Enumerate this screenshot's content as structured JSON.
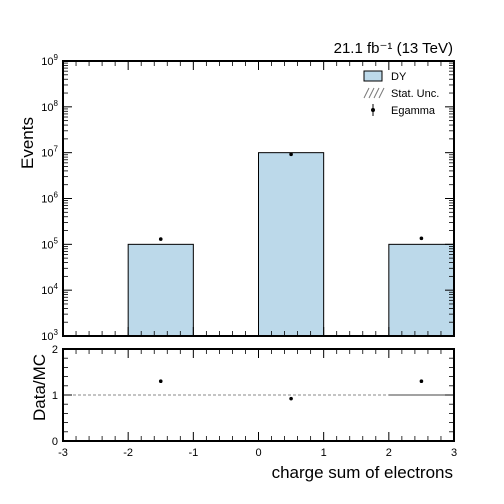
{
  "lumi_label": "21.1 fb⁻¹ (13 TeV)",
  "colors": {
    "mc_fill": "#bcd9ea",
    "mc_edge": "#000000",
    "data_marker": "#000000",
    "ratio_line": "#888888"
  },
  "chart_data": [
    {
      "type": "bar",
      "panel": "main",
      "xlabel": "",
      "ylabel": "Events",
      "xlim": [
        -3,
        3
      ],
      "ylim": [
        1000,
        1000000000
      ],
      "yscale": "log",
      "y_tick_exponents": [
        3,
        4,
        5,
        6,
        7,
        8,
        9
      ],
      "legend_placement": "top-right",
      "legend": [
        {
          "label": "DY",
          "kind": "fill"
        },
        {
          "label": "Stat. Unc.",
          "kind": "hatch"
        },
        {
          "label": "Egamma",
          "kind": "marker"
        }
      ],
      "series": [
        {
          "name": "DY",
          "bins": [
            {
              "low": -2,
              "high": -1,
              "value": 100000
            },
            {
              "low": 0,
              "high": 1,
              "value": 10000000
            },
            {
              "low": 2,
              "high": 3,
              "value": 100000
            }
          ]
        },
        {
          "name": "Egamma",
          "points": [
            {
              "x": -1.5,
              "y": 130000
            },
            {
              "x": 0.5,
              "y": 9200000
            },
            {
              "x": 2.5,
              "y": 135000
            }
          ]
        }
      ]
    },
    {
      "type": "scatter",
      "panel": "ratio",
      "xlabel": "charge sum of electrons",
      "ylabel": "Data/MC",
      "xlim": [
        -3,
        3
      ],
      "ylim": [
        0,
        2
      ],
      "x_ticks": [
        "-3",
        "-2",
        "-1",
        "0",
        "1",
        "2",
        "3"
      ],
      "y_ticks": [
        "0",
        "1",
        "2"
      ],
      "reference_line": 1,
      "points": [
        {
          "x": -1.5,
          "y": 1.3
        },
        {
          "x": 0.5,
          "y": 0.92
        },
        {
          "x": 2.5,
          "y": 1.3
        }
      ]
    }
  ]
}
